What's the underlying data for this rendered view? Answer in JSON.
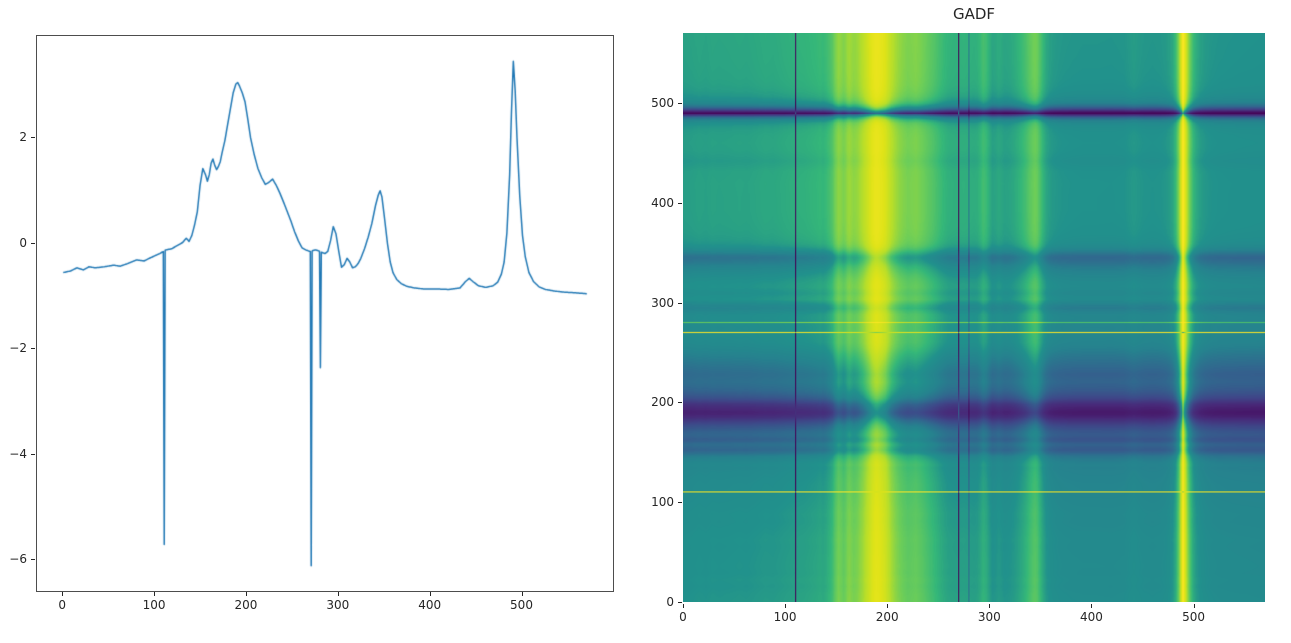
{
  "figure": {
    "background": "#ffffff"
  },
  "chart_data": [
    {
      "type": "line",
      "title": "",
      "xlabel": "",
      "ylabel": "",
      "line_color": "#1f77b4",
      "grid": false,
      "legend": false,
      "xlim": [
        -28.5,
        598.5
      ],
      "ylim": [
        -6.58,
        3.93
      ],
      "xticks": [
        0,
        100,
        200,
        300,
        400,
        500
      ],
      "xtick_labels": [
        "0",
        "100",
        "200",
        "300",
        "400",
        "500"
      ],
      "yticks": [
        -6,
        -4,
        -2,
        0,
        2
      ],
      "ytick_labels": [
        "−6",
        "−4",
        "−2",
        "0",
        "2"
      ],
      "x": [
        0,
        8,
        15,
        22,
        28,
        35,
        45,
        55,
        62,
        70,
        80,
        88,
        95,
        100,
        105,
        108,
        109.4,
        110,
        110.6,
        112,
        118,
        124,
        130,
        134,
        137,
        140,
        143,
        146,
        149,
        152,
        155,
        157,
        159,
        161,
        163,
        165,
        167,
        169,
        171,
        173,
        176,
        179,
        182,
        185,
        188,
        190,
        192,
        195,
        198,
        201,
        204,
        208,
        212,
        216,
        220,
        224,
        228,
        232,
        236,
        240,
        244,
        248,
        252,
        256,
        260,
        264,
        267,
        269,
        269.5,
        270,
        270.5,
        272,
        275,
        278,
        279.5,
        280,
        280.5,
        282,
        285,
        288,
        291,
        294,
        297,
        300,
        303,
        306,
        309,
        312,
        315,
        318,
        321,
        324,
        328,
        332,
        336,
        340,
        343,
        345,
        347,
        350,
        353,
        356,
        359,
        363,
        368,
        374,
        382,
        392,
        405,
        420,
        432,
        438,
        442,
        446,
        452,
        460,
        468,
        473,
        477,
        480,
        483,
        486,
        488,
        490,
        492,
        494,
        497,
        500,
        503,
        507,
        512,
        518,
        525,
        535,
        545,
        555,
        562,
        570
      ],
      "y": [
        -0.55,
        -0.52,
        -0.46,
        -0.5,
        -0.44,
        -0.46,
        -0.44,
        -0.41,
        -0.43,
        -0.38,
        -0.31,
        -0.33,
        -0.27,
        -0.23,
        -0.19,
        -0.16,
        -0.15,
        -5.7,
        -0.13,
        -0.12,
        -0.1,
        -0.04,
        0.02,
        0.1,
        0.04,
        0.15,
        0.35,
        0.6,
        1.1,
        1.42,
        1.3,
        1.18,
        1.3,
        1.52,
        1.6,
        1.48,
        1.4,
        1.46,
        1.55,
        1.72,
        1.95,
        2.25,
        2.55,
        2.85,
        3.02,
        3.05,
        2.98,
        2.85,
        2.68,
        2.35,
        2.0,
        1.68,
        1.42,
        1.25,
        1.12,
        1.16,
        1.22,
        1.1,
        0.95,
        0.78,
        0.6,
        0.42,
        0.22,
        0.05,
        -0.08,
        -0.12,
        -0.14,
        -0.15,
        -0.15,
        -6.1,
        -0.15,
        -0.13,
        -0.12,
        -0.14,
        -0.15,
        -2.35,
        -0.16,
        -0.17,
        -0.19,
        -0.15,
        0.05,
        0.32,
        0.18,
        -0.15,
        -0.45,
        -0.4,
        -0.28,
        -0.35,
        -0.46,
        -0.44,
        -0.38,
        -0.28,
        -0.1,
        0.12,
        0.38,
        0.72,
        0.92,
        1.0,
        0.88,
        0.45,
        0.0,
        -0.35,
        -0.55,
        -0.68,
        -0.76,
        -0.81,
        -0.84,
        -0.86,
        -0.86,
        -0.87,
        -0.84,
        -0.72,
        -0.66,
        -0.72,
        -0.8,
        -0.83,
        -0.8,
        -0.73,
        -0.58,
        -0.35,
        0.2,
        1.3,
        2.5,
        3.45,
        2.9,
        2.0,
        0.9,
        0.15,
        -0.25,
        -0.55,
        -0.72,
        -0.82,
        -0.87,
        -0.9,
        -0.92,
        -0.93,
        -0.94,
        -0.95
      ]
    },
    {
      "type": "heatmap",
      "title": "GADF",
      "xlabel": "",
      "ylabel": "",
      "derived_from": "gramian_angular_difference_field_of_series_0",
      "formula": "M[i][j] = sin(phi_i - phi_j), phi = arccos(series scaled to [-1,1])",
      "sample_step": 1,
      "extent": [
        0,
        570,
        0,
        570
      ],
      "origin": "lower",
      "xticks": [
        0,
        100,
        200,
        300,
        400,
        500
      ],
      "xtick_labels": [
        "0",
        "100",
        "200",
        "300",
        "400",
        "500"
      ],
      "yticks": [
        0,
        100,
        200,
        300,
        400,
        500
      ],
      "ytick_labels": [
        "0",
        "100",
        "200",
        "300",
        "400",
        "500"
      ],
      "value_range": [
        -1,
        1
      ],
      "colormap": "viridis",
      "colormap_stops": [
        [
          0.0,
          68,
          1,
          84
        ],
        [
          0.1,
          72,
          40,
          120
        ],
        [
          0.2,
          62,
          73,
          137
        ],
        [
          0.3,
          49,
          104,
          142
        ],
        [
          0.4,
          38,
          130,
          142
        ],
        [
          0.5,
          33,
          145,
          140
        ],
        [
          0.6,
          53,
          183,
          121
        ],
        [
          0.7,
          110,
          206,
          88
        ],
        [
          0.8,
          181,
          222,
          43
        ],
        [
          0.9,
          223,
          227,
          24
        ],
        [
          1.0,
          253,
          231,
          37
        ]
      ]
    }
  ]
}
